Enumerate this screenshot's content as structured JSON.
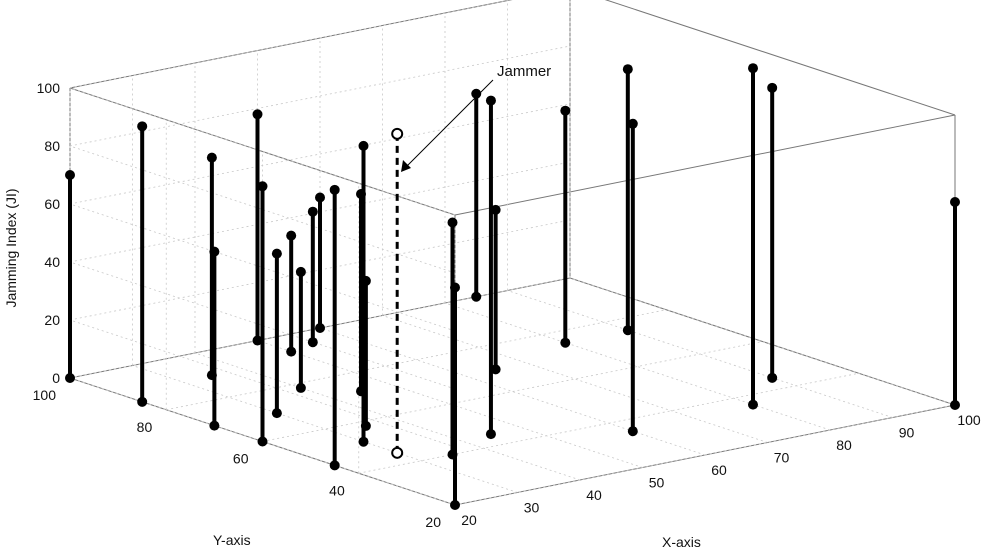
{
  "chart_data": {
    "type": "scatter",
    "subtype": "3d-stem",
    "xlabel": "X-axis",
    "ylabel": "Y-axis",
    "zlabel": "Jamming Index (JI)",
    "xlim": [
      20,
      100
    ],
    "ylim": [
      20,
      100
    ],
    "zlim": [
      0,
      100
    ],
    "x_ticks": [
      20,
      30,
      40,
      50,
      60,
      70,
      80,
      90,
      100
    ],
    "y_ticks": [
      20,
      40,
      60,
      80,
      100
    ],
    "z_ticks": [
      0,
      20,
      40,
      60,
      80,
      100
    ],
    "grid": true,
    "annotation": {
      "text": "Jammer"
    },
    "series": [
      {
        "marker": "filled-circle",
        "points": [
          {
            "x": 20,
            "y": 100,
            "z": 70
          },
          {
            "x": 20,
            "y": 85,
            "z": 95
          },
          {
            "x": 20,
            "y": 70,
            "z": 60
          },
          {
            "x": 20,
            "y": 60,
            "z": 88
          },
          {
            "x": 20,
            "y": 45,
            "z": 95
          },
          {
            "x": 20,
            "y": 20,
            "z": 75
          },
          {
            "x": 30,
            "y": 52,
            "z": 102
          },
          {
            "x": 30,
            "y": 70,
            "z": 55
          },
          {
            "x": 35,
            "y": 40,
            "z": 80
          },
          {
            "x": 35,
            "y": 58,
            "z": 50
          },
          {
            "x": 35,
            "y": 90,
            "z": 75
          },
          {
            "x": 40,
            "y": 78,
            "z": 40
          },
          {
            "x": 45,
            "y": 72,
            "z": 68
          },
          {
            "x": 45,
            "y": 45,
            "z": 115
          },
          {
            "x": 50,
            "y": 93,
            "z": 40
          },
          {
            "x": 50,
            "y": 100,
            "z": 78
          },
          {
            "x": 55,
            "y": 95,
            "z": 45
          },
          {
            "x": 60,
            "y": 35,
            "z": 106
          },
          {
            "x": 60,
            "y": 100,
            "z": 45
          },
          {
            "x": 65,
            "y": 70,
            "z": 55
          },
          {
            "x": 80,
            "y": 36,
            "z": 116
          },
          {
            "x": 80,
            "y": 75,
            "z": 80
          },
          {
            "x": 85,
            "y": 100,
            "z": 70
          },
          {
            "x": 90,
            "y": 45,
            "z": 100
          },
          {
            "x": 90,
            "y": 75,
            "z": 90
          },
          {
            "x": 100,
            "y": 20,
            "z": 70
          }
        ]
      },
      {
        "name": "Jammer",
        "marker": "open-circle",
        "points": [
          {
            "x": 30,
            "y": 45,
            "z": 110
          }
        ]
      }
    ]
  }
}
